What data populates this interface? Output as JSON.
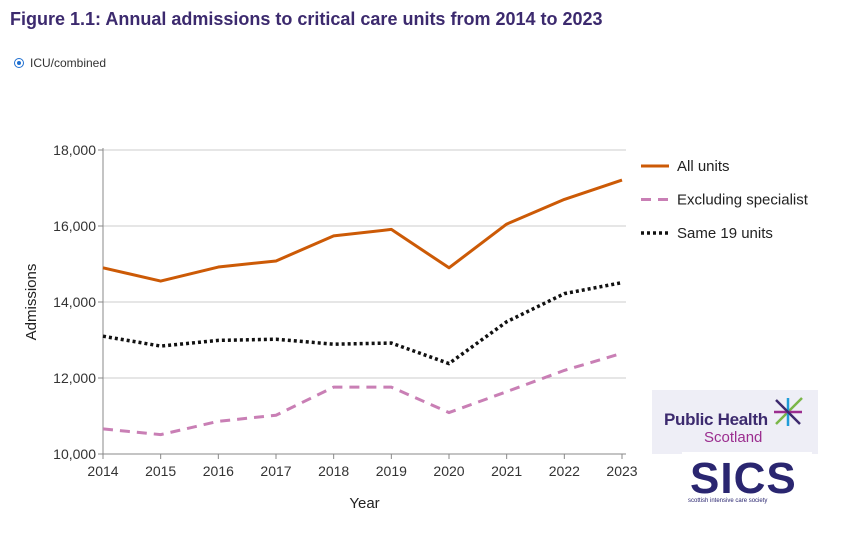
{
  "title": "Figure 1.1: Annual admissions to critical care units from 2014 to 2023",
  "selector": {
    "label": "ICU/combined",
    "selected": true
  },
  "chart_data": {
    "type": "line",
    "x": [
      2014,
      2015,
      2016,
      2017,
      2018,
      2019,
      2020,
      2021,
      2022,
      2023
    ],
    "xlabel": "Year",
    "ylabel": "Admissions",
    "ylim": [
      10000,
      18000
    ],
    "yticks": [
      10000,
      12000,
      14000,
      16000,
      18000
    ],
    "ytick_labels": [
      "10,000",
      "12,000",
      "14,000",
      "16,000",
      "18,000"
    ],
    "grid": "horizontal",
    "legend": "right",
    "series": [
      {
        "name": "All units",
        "style": "solid",
        "color": "#cc5a06",
        "values": [
          14900,
          14550,
          14920,
          15080,
          15740,
          15910,
          14900,
          16050,
          16700,
          17210
        ]
      },
      {
        "name": "Excluding specialist",
        "style": "dashed",
        "color": "#c97fb5",
        "values": [
          10660,
          10510,
          10860,
          11020,
          11760,
          11760,
          11090,
          11640,
          12200,
          12650
        ]
      },
      {
        "name": "Same 19 units",
        "style": "dotted",
        "color": "#111111",
        "values": [
          13100,
          12840,
          12990,
          13020,
          12890,
          12920,
          12380,
          13480,
          14220,
          14510
        ]
      }
    ]
  },
  "logos": {
    "phs_line1": "Public Health",
    "phs_line2": "Scotland",
    "sics_text": "SICS",
    "sics_sub": "scottish intensive care society",
    "phs_star_colors": [
      "#7ab648",
      "#1f9cd8",
      "#9b2d8f",
      "#3c2a6e"
    ]
  }
}
